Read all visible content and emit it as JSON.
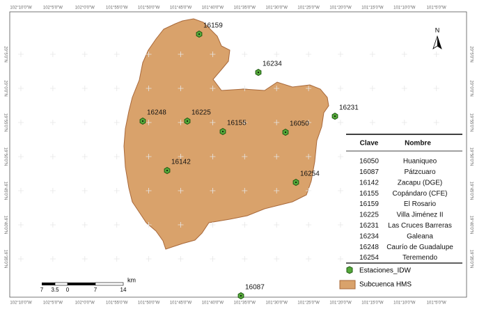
{
  "map": {
    "top_labels": [
      "102°10'0\"W",
      "102°5'0\"W",
      "102°0'0\"W",
      "101°55'0\"W",
      "101°50'0\"W",
      "101°45'0\"W",
      "101°40'0\"W",
      "101°35'0\"W",
      "101°30'0\"W",
      "101°25'0\"W",
      "101°20'0\"W",
      "101°15'0\"W",
      "101°10'0\"W",
      "101°5'0\"W"
    ],
    "bottom_labels": [
      "102°10'0\"W",
      "102°5'0\"W",
      "102°0'0\"W",
      "101°55'0\"W",
      "101°50'0\"W",
      "101°45'0\"W",
      "101°40'0\"W",
      "101°35'0\"W",
      "101°30'0\"W",
      "101°25'0\"W",
      "101°20'0\"W",
      "101°15'0\"W",
      "101°10'0\"W",
      "101°5'0\"W"
    ],
    "left_labels": [
      "20°5'0\"N",
      "20°0'0\"N",
      "19°55'0\"N",
      "19°50'0\"N",
      "19°45'0\"N",
      "19°40'0\"N",
      "19°35'0\"N"
    ],
    "right_labels": [
      "20°5'0\"N",
      "20°0'0\"N",
      "19°55'0\"N",
      "19°50'0\"N",
      "19°45'0\"N",
      "19°40'0\"N",
      "19°35'0\"N"
    ],
    "north": "N",
    "stations": [
      "16159",
      "16234",
      "16231",
      "16248",
      "16225",
      "16155",
      "16050",
      "16142",
      "16254",
      "16087"
    ],
    "table": {
      "headers": [
        "Clave",
        "Nombre"
      ],
      "rows": [
        [
          "16050",
          "Huaniqueo"
        ],
        [
          "16087",
          "Pátzcuaro"
        ],
        [
          "16142",
          "Zacapu (DGE)"
        ],
        [
          "16155",
          "Copándaro (CFE)"
        ],
        [
          "16159",
          "El Rosario"
        ],
        [
          "16225",
          "Villa Jiménez II"
        ],
        [
          "16231",
          "Las Cruces Barreras"
        ],
        [
          "16234",
          "Galeana"
        ],
        [
          "16248",
          "Caurío de Guadalupe"
        ],
        [
          "16254",
          "Teremendo"
        ]
      ]
    },
    "legend": [
      "Estaciones_IDW",
      "Subcuenca HMS"
    ],
    "scale_bar": {
      "labels": [
        "7",
        "3.5",
        "0",
        "7",
        "14"
      ],
      "unit": "km"
    }
  }
}
